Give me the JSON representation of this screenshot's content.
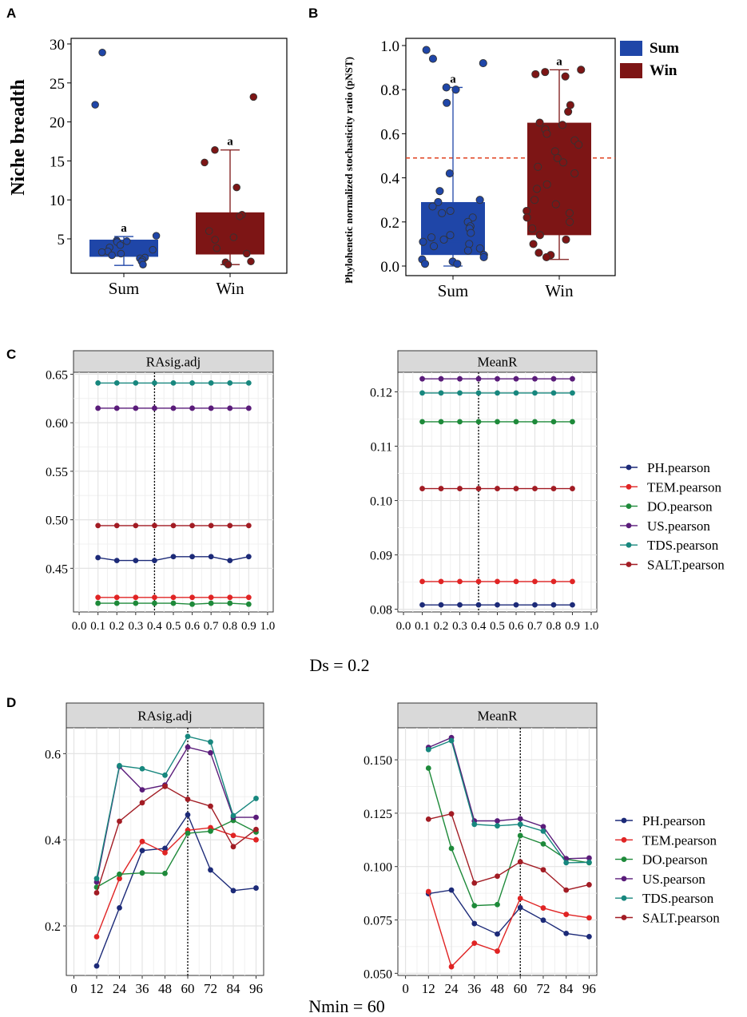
{
  "panel_labels": {
    "A": "A",
    "B": "B",
    "C": "C",
    "D": "D"
  },
  "colors": {
    "sum": "#1f46a8",
    "win": "#7d1515",
    "PH": "#1c2a78",
    "TEM": "#e02424",
    "DO": "#1e8a3a",
    "US": "#5a1c7a",
    "TDS": "#17877e",
    "SALT": "#a21c24",
    "refline": "#e0421f"
  },
  "chart_data": [
    {
      "id": "A",
      "type": "box",
      "ylabel": "Niche breadth",
      "yticks": [
        "5",
        "10",
        "15",
        "20",
        "25",
        "30"
      ],
      "categories": [
        "Sum",
        "Win"
      ],
      "boxes": [
        {
          "name": "Sum",
          "q1": 2.7,
          "median": 3.7,
          "q3": 4.9,
          "whisker_low": 1.6,
          "whisker_high": 5.3,
          "sig": "a",
          "points": [
            22.2,
            28.9,
            5.4,
            4.8,
            4.7,
            4.6,
            4.2,
            3.9,
            3.6,
            3.4,
            3.3,
            3.1,
            2.9,
            2.6,
            2.5,
            2.3,
            2.1,
            1.7
          ]
        },
        {
          "name": "Win",
          "q1": 3.0,
          "median": 3.2,
          "q3": 8.4,
          "whisker_low": 1.7,
          "whisker_high": 16.4,
          "sig": "a",
          "points": [
            23.2,
            16.4,
            14.8,
            11.6,
            8.1,
            7.9,
            6.0,
            5.2,
            4.9,
            3.8,
            3.1,
            2.1,
            2.0,
            1.7
          ]
        }
      ]
    },
    {
      "id": "B",
      "type": "box",
      "ylabel": "Phylohenetic normalized stochasticity ratio (pNST)",
      "yticks": [
        "0.0",
        "0.2",
        "0.4",
        "0.6",
        "0.8",
        "1.0"
      ],
      "categories": [
        "Sum",
        "Win"
      ],
      "reference_line": 0.49,
      "legend": [
        {
          "label": "Sum",
          "color_key": "sum"
        },
        {
          "label": "Win",
          "color_key": "win"
        }
      ],
      "boxes": [
        {
          "name": "Sum",
          "q1": 0.05,
          "median": 0.11,
          "q3": 0.29,
          "whisker_low": 0.0,
          "whisker_high": 0.81,
          "sig": "a",
          "points": [
            0.98,
            0.94,
            0.92,
            0.81,
            0.8,
            0.74,
            0.42,
            0.34,
            0.3,
            0.29,
            0.27,
            0.25,
            0.24,
            0.22,
            0.2,
            0.18,
            0.17,
            0.15,
            0.14,
            0.13,
            0.12,
            0.11,
            0.1,
            0.09,
            0.08,
            0.07,
            0.05,
            0.04,
            0.03,
            0.02,
            0.01,
            0.01
          ]
        },
        {
          "name": "Win",
          "q1": 0.14,
          "median": 0.15,
          "q3": 0.65,
          "whisker_low": 0.03,
          "whisker_high": 0.89,
          "sig": "a",
          "points": [
            0.89,
            0.88,
            0.87,
            0.86,
            0.73,
            0.7,
            0.65,
            0.64,
            0.62,
            0.6,
            0.57,
            0.55,
            0.52,
            0.49,
            0.47,
            0.45,
            0.42,
            0.37,
            0.35,
            0.3,
            0.28,
            0.25,
            0.24,
            0.22,
            0.2,
            0.17,
            0.14,
            0.12,
            0.1,
            0.06,
            0.05,
            0.04
          ]
        }
      ]
    },
    {
      "id": "C1",
      "type": "line",
      "title": "RAsig.adj",
      "x": [
        0.1,
        0.2,
        0.3,
        0.4,
        0.5,
        0.6,
        0.7,
        0.8,
        0.9
      ],
      "xtick_labels": [
        "0.0",
        "0.1",
        "0.2",
        "0.3",
        "0.4",
        "0.5",
        "0.6",
        "0.7",
        "0.8",
        "0.9",
        "1.0"
      ],
      "yticks": [
        "0.45",
        "0.50",
        "0.55",
        "0.60",
        "0.65"
      ],
      "ylim": [
        0.405,
        0.652
      ],
      "vline": 0.4,
      "series": [
        {
          "name": "PH.pearson",
          "key": "PH",
          "values": [
            0.461,
            0.458,
            0.458,
            0.458,
            0.462,
            0.462,
            0.462,
            0.458,
            0.462
          ]
        },
        {
          "name": "TEM.pearson",
          "key": "TEM",
          "values": [
            0.42,
            0.42,
            0.42,
            0.42,
            0.42,
            0.42,
            0.42,
            0.42,
            0.42
          ]
        },
        {
          "name": "DO.pearson",
          "key": "DO",
          "values": [
            0.414,
            0.414,
            0.414,
            0.414,
            0.414,
            0.413,
            0.414,
            0.414,
            0.413
          ]
        },
        {
          "name": "US.pearson",
          "key": "US",
          "values": [
            0.615,
            0.615,
            0.615,
            0.615,
            0.615,
            0.615,
            0.615,
            0.615,
            0.615
          ]
        },
        {
          "name": "TDS.pearson",
          "key": "TDS",
          "values": [
            0.641,
            0.641,
            0.641,
            0.641,
            0.641,
            0.641,
            0.641,
            0.641,
            0.641
          ]
        },
        {
          "name": "SALT.pearson",
          "key": "SALT",
          "values": [
            0.494,
            0.494,
            0.494,
            0.494,
            0.494,
            0.494,
            0.494,
            0.494,
            0.494
          ]
        }
      ]
    },
    {
      "id": "C2",
      "type": "line",
      "title": "MeanR",
      "x": [
        0.1,
        0.2,
        0.3,
        0.4,
        0.5,
        0.6,
        0.7,
        0.8,
        0.9
      ],
      "xtick_labels": [
        "0.0",
        "0.1",
        "0.2",
        "0.3",
        "0.4",
        "0.5",
        "0.6",
        "0.7",
        "0.8",
        "0.9",
        "1.0"
      ],
      "yticks": [
        "0.08",
        "0.09",
        "0.10",
        "0.11",
        "0.12"
      ],
      "ylim": [
        0.0795,
        0.1236
      ],
      "vline": 0.4,
      "series": [
        {
          "name": "PH.pearson",
          "key": "PH",
          "values": [
            0.0808,
            0.0808,
            0.0808,
            0.0808,
            0.0808,
            0.0808,
            0.0808,
            0.0808,
            0.0808
          ]
        },
        {
          "name": "TEM.pearson",
          "key": "TEM",
          "values": [
            0.0851,
            0.0851,
            0.0851,
            0.0851,
            0.0851,
            0.0851,
            0.0851,
            0.0851,
            0.0851
          ]
        },
        {
          "name": "DO.pearson",
          "key": "DO",
          "values": [
            0.1145,
            0.1145,
            0.1145,
            0.1145,
            0.1145,
            0.1145,
            0.1145,
            0.1145,
            0.1145
          ]
        },
        {
          "name": "US.pearson",
          "key": "US",
          "values": [
            0.1224,
            0.1224,
            0.1224,
            0.1224,
            0.1224,
            0.1224,
            0.1224,
            0.1224,
            0.1224
          ]
        },
        {
          "name": "TDS.pearson",
          "key": "TDS",
          "values": [
            0.1198,
            0.1198,
            0.1198,
            0.1198,
            0.1198,
            0.1198,
            0.1198,
            0.1198,
            0.1198
          ]
        },
        {
          "name": "SALT.pearson",
          "key": "SALT",
          "values": [
            0.1022,
            0.1022,
            0.1022,
            0.1022,
            0.1022,
            0.1022,
            0.1022,
            0.1022,
            0.1022
          ]
        }
      ]
    },
    {
      "id": "D1",
      "type": "line",
      "title": "RAsig.adj",
      "x": [
        12,
        24,
        36,
        48,
        60,
        72,
        84,
        96
      ],
      "xtick_labels": [
        "0",
        "12",
        "24",
        "36",
        "48",
        "60",
        "72",
        "84",
        "96"
      ],
      "yticks": [
        "0.2",
        "0.4",
        "0.6"
      ],
      "ylim": [
        0.085,
        0.66
      ],
      "vline": 60,
      "series": [
        {
          "name": "PH.pearson",
          "key": "PH",
          "values": [
            0.107,
            0.242,
            0.375,
            0.38,
            0.458,
            0.33,
            0.282,
            0.288
          ]
        },
        {
          "name": "TEM.pearson",
          "key": "TEM",
          "values": [
            0.175,
            0.31,
            0.396,
            0.37,
            0.422,
            0.428,
            0.41,
            0.4
          ]
        },
        {
          "name": "DO.pearson",
          "key": "DO",
          "values": [
            0.29,
            0.32,
            0.323,
            0.322,
            0.415,
            0.42,
            0.445,
            0.418
          ]
        },
        {
          "name": "US.pearson",
          "key": "US",
          "values": [
            0.302,
            0.57,
            0.516,
            0.527,
            0.615,
            0.602,
            0.452,
            0.452
          ]
        },
        {
          "name": "TDS.pearson",
          "key": "TDS",
          "values": [
            0.31,
            0.572,
            0.565,
            0.55,
            0.64,
            0.627,
            0.456,
            0.496
          ]
        },
        {
          "name": "SALT.pearson",
          "key": "SALT",
          "values": [
            0.277,
            0.443,
            0.486,
            0.524,
            0.494,
            0.478,
            0.384,
            0.424
          ]
        }
      ]
    },
    {
      "id": "D2",
      "type": "line",
      "title": "MeanR",
      "x": [
        12,
        24,
        36,
        48,
        60,
        72,
        84,
        96
      ],
      "xtick_labels": [
        "0",
        "12",
        "24",
        "36",
        "48",
        "60",
        "72",
        "84",
        "96"
      ],
      "yticks": [
        "0.050",
        "0.075",
        "0.100",
        "0.125",
        "0.150"
      ],
      "ylim": [
        0.049,
        0.165
      ],
      "vline": 60,
      "series": [
        {
          "name": "PH.pearson",
          "key": "PH",
          "values": [
            0.0873,
            0.089,
            0.0733,
            0.0684,
            0.0808,
            0.0749,
            0.0687,
            0.0672
          ]
        },
        {
          "name": "TEM.pearson",
          "key": "TEM",
          "values": [
            0.0883,
            0.0531,
            0.0641,
            0.0604,
            0.0851,
            0.0806,
            0.0776,
            0.076
          ]
        },
        {
          "name": "DO.pearson",
          "key": "DO",
          "values": [
            0.1461,
            0.1085,
            0.0817,
            0.0822,
            0.1145,
            0.1106,
            0.1035,
            0.1018
          ]
        },
        {
          "name": "US.pearson",
          "key": "US",
          "values": [
            0.1558,
            0.1604,
            0.1214,
            0.1214,
            0.1224,
            0.1187,
            0.1037,
            0.104
          ]
        },
        {
          "name": "TDS.pearson",
          "key": "TDS",
          "values": [
            0.1548,
            0.159,
            0.1198,
            0.1191,
            0.1198,
            0.1166,
            0.1018,
            0.102
          ]
        },
        {
          "name": "SALT.pearson",
          "key": "SALT",
          "values": [
            0.1222,
            0.1247,
            0.0923,
            0.0955,
            0.1022,
            0.0985,
            0.089,
            0.0915
          ]
        }
      ]
    }
  ],
  "legend_items": [
    "PH.pearson",
    "TEM.pearson",
    "DO.pearson",
    "US.pearson",
    "TDS.pearson",
    "SALT.pearson"
  ],
  "captions": {
    "C": "Ds = 0.2",
    "D": "Nmin = 60"
  }
}
